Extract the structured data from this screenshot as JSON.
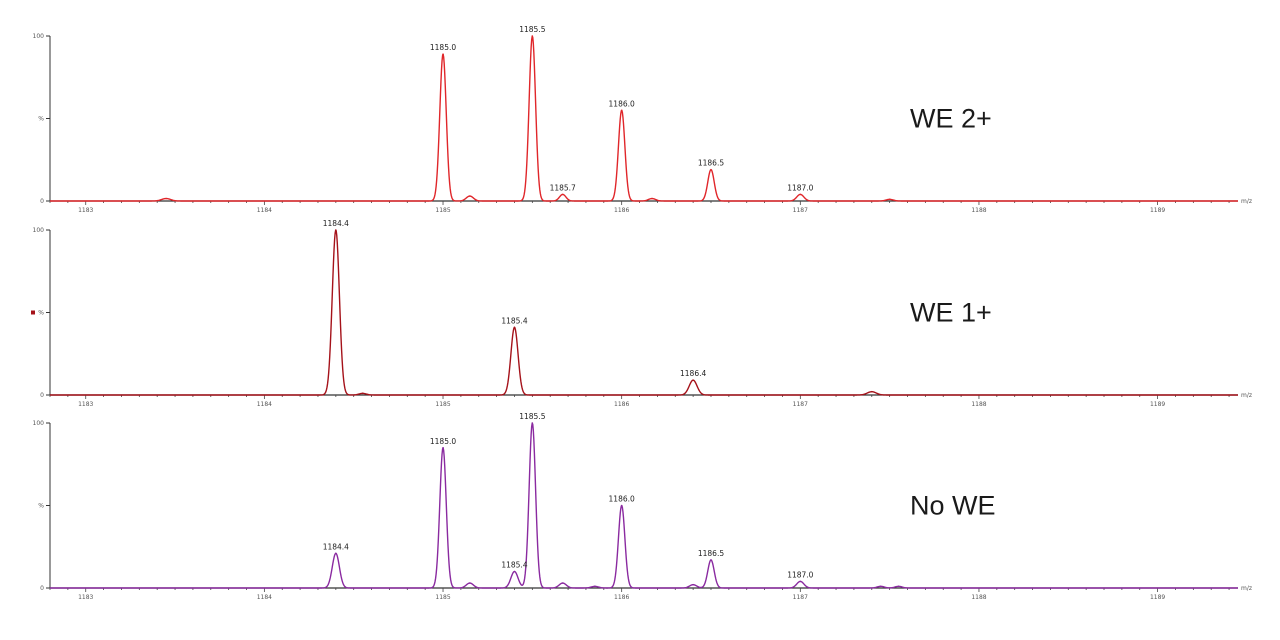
{
  "chart_data": [
    {
      "type": "line",
      "title": "WE 2+",
      "color": "#e0262a",
      "xunit": "m/z",
      "xlim": [
        1182.8,
        1189.45
      ],
      "ylim": [
        0,
        100
      ],
      "xticks": [
        1183,
        1184,
        1185,
        1186,
        1187,
        1188,
        1189
      ],
      "yticks": [
        0,
        50,
        100
      ],
      "ylabels": [
        "0",
        "%",
        "100"
      ],
      "peaks": [
        {
          "x": 1183.45,
          "y": 1.5,
          "w": 0.025
        },
        {
          "x": 1185.0,
          "y": 89,
          "w": 0.018,
          "label": "1185.0"
        },
        {
          "x": 1185.15,
          "y": 3,
          "w": 0.02
        },
        {
          "x": 1185.5,
          "y": 100,
          "w": 0.018,
          "label": "1185.5"
        },
        {
          "x": 1185.67,
          "y": 4,
          "w": 0.018,
          "label": "1185.7"
        },
        {
          "x": 1186.0,
          "y": 55,
          "w": 0.018,
          "label": "1186.0"
        },
        {
          "x": 1186.17,
          "y": 1.5,
          "w": 0.02
        },
        {
          "x": 1186.5,
          "y": 19,
          "w": 0.018,
          "label": "1186.5"
        },
        {
          "x": 1187.0,
          "y": 4,
          "w": 0.02,
          "label": "1187.0"
        },
        {
          "x": 1187.5,
          "y": 1,
          "w": 0.02
        }
      ]
    },
    {
      "type": "line",
      "title": "WE 1+",
      "color": "#a5121a",
      "xunit": "m/z",
      "xlim": [
        1182.8,
        1189.45
      ],
      "ylim": [
        0,
        100
      ],
      "xticks": [
        1183,
        1184,
        1185,
        1186,
        1187,
        1188,
        1189
      ],
      "yticks": [
        0,
        50,
        100
      ],
      "ylabels": [
        "0",
        "%",
        "100"
      ],
      "peaks": [
        {
          "x": 1184.4,
          "y": 100,
          "w": 0.02,
          "label": "1184.4"
        },
        {
          "x": 1184.55,
          "y": 1,
          "w": 0.02
        },
        {
          "x": 1185.4,
          "y": 41,
          "w": 0.02,
          "label": "1185.4"
        },
        {
          "x": 1186.4,
          "y": 9,
          "w": 0.022,
          "label": "1186.4"
        },
        {
          "x": 1187.4,
          "y": 2,
          "w": 0.025
        }
      ]
    },
    {
      "type": "line",
      "title": "No WE",
      "color": "#8a2aa0",
      "xunit": "m/z",
      "xlim": [
        1182.8,
        1189.45
      ],
      "ylim": [
        0,
        100
      ],
      "xticks": [
        1183,
        1184,
        1185,
        1186,
        1187,
        1188,
        1189
      ],
      "yticks": [
        0,
        50,
        100
      ],
      "ylabels": [
        "0",
        "%",
        "100"
      ],
      "peaks": [
        {
          "x": 1184.4,
          "y": 21,
          "w": 0.02,
          "label": "1184.4"
        },
        {
          "x": 1185.0,
          "y": 85,
          "w": 0.018,
          "label": "1185.0"
        },
        {
          "x": 1185.15,
          "y": 3,
          "w": 0.02
        },
        {
          "x": 1185.4,
          "y": 10,
          "w": 0.02,
          "label": "1185.4"
        },
        {
          "x": 1185.5,
          "y": 100,
          "w": 0.018,
          "label": "1185.5"
        },
        {
          "x": 1185.67,
          "y": 3,
          "w": 0.02
        },
        {
          "x": 1185.85,
          "y": 1,
          "w": 0.02
        },
        {
          "x": 1186.0,
          "y": 50,
          "w": 0.018,
          "label": "1186.0"
        },
        {
          "x": 1186.4,
          "y": 2,
          "w": 0.02
        },
        {
          "x": 1186.5,
          "y": 17,
          "w": 0.018,
          "label": "1186.5"
        },
        {
          "x": 1187.0,
          "y": 4,
          "w": 0.02,
          "label": "1187.0"
        },
        {
          "x": 1187.45,
          "y": 1,
          "w": 0.02
        },
        {
          "x": 1187.55,
          "y": 1,
          "w": 0.02
        }
      ]
    }
  ]
}
